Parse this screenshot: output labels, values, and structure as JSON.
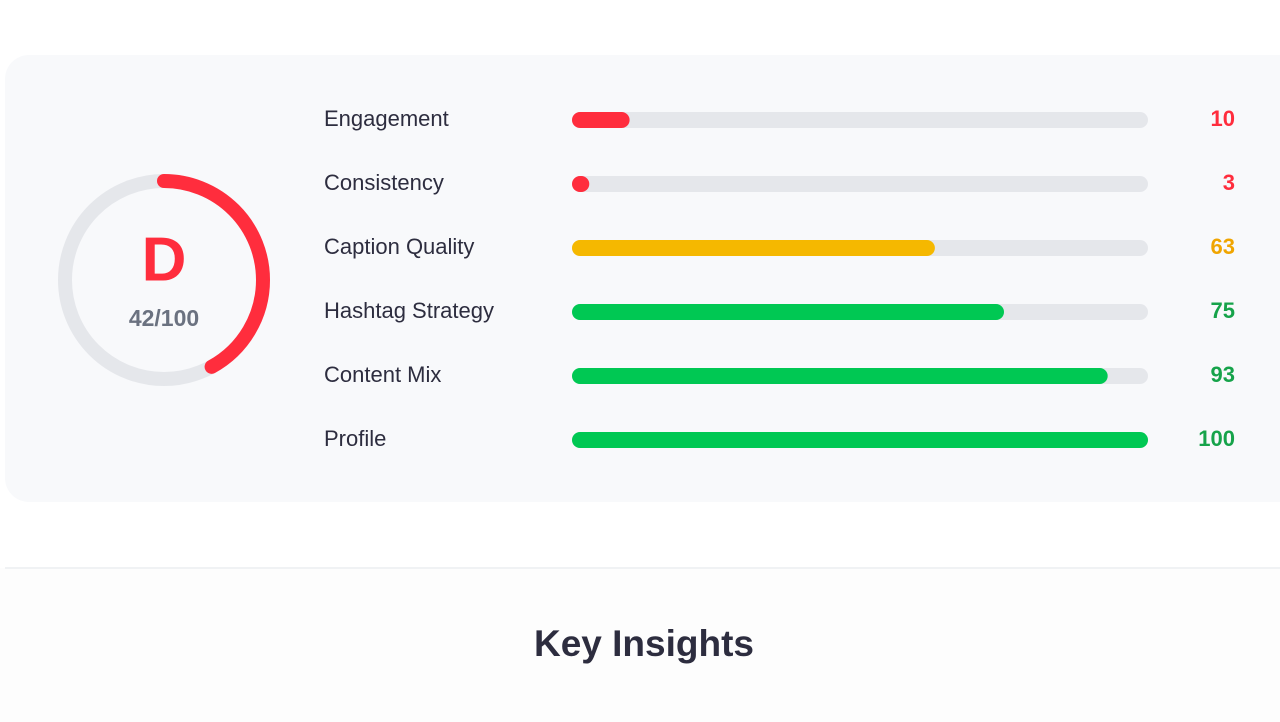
{
  "score_card": {
    "grade": "D",
    "score": {
      "value": 42,
      "max": 100,
      "label": "42/100"
    },
    "grade_color": "#ff2d3d",
    "metrics_max": 100,
    "metrics": [
      {
        "name": "Engagement",
        "value": 10,
        "color": "#ff2d3d",
        "text_color": "#ff2d3d"
      },
      {
        "name": "Consistency",
        "value": 3,
        "color": "#ff2d3d",
        "text_color": "#ff2d3d"
      },
      {
        "name": "Caption Quality",
        "value": 63,
        "color": "#f5b800",
        "text_color": "#f0a500"
      },
      {
        "name": "Hashtag Strategy",
        "value": 75,
        "color": "#00c853",
        "text_color": "#16a34a"
      },
      {
        "name": "Content Mix",
        "value": 93,
        "color": "#00c853",
        "text_color": "#16a34a"
      },
      {
        "name": "Profile",
        "value": 100,
        "color": "#00c853",
        "text_color": "#16a34a"
      }
    ]
  },
  "section": {
    "title": "Key Insights"
  }
}
